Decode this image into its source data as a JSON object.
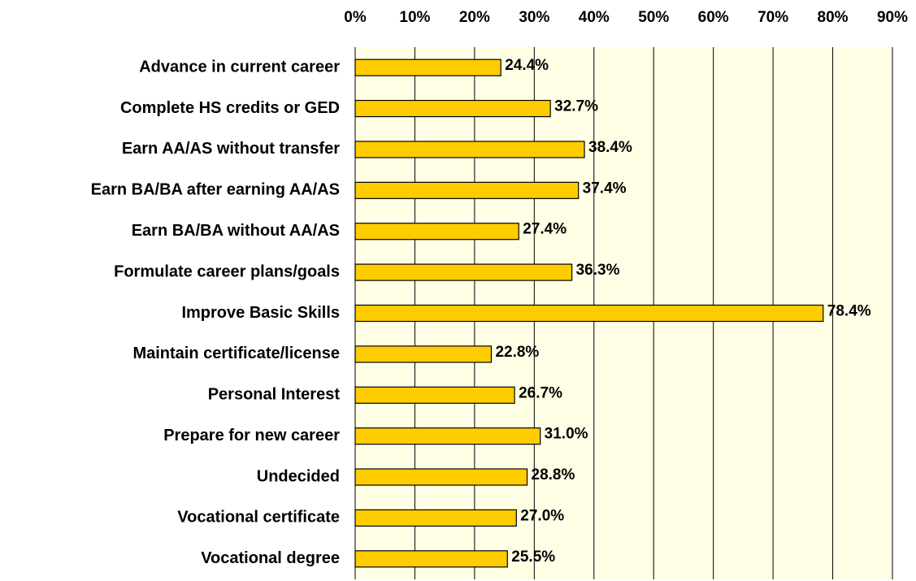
{
  "chart_data": {
    "type": "bar",
    "orientation": "horizontal",
    "categories": [
      "Advance in current career",
      "Complete HS credits or GED",
      "Earn AA/AS without transfer",
      "Earn BA/BA after earning AA/AS",
      "Earn BA/BA without AA/AS",
      "Formulate career plans/goals",
      "Improve Basic Skills",
      "Maintain certificate/license",
      "Personal Interest",
      "Prepare for new career",
      "Undecided",
      "Vocational certificate",
      "Vocational degree"
    ],
    "values": [
      24.4,
      32.7,
      38.4,
      37.4,
      27.4,
      36.3,
      78.4,
      22.8,
      26.7,
      31.0,
      28.8,
      27.0,
      25.5
    ],
    "value_labels": [
      "24.4%",
      "32.7%",
      "38.4%",
      "37.4%",
      "27.4%",
      "36.3%",
      "78.4%",
      "22.8%",
      "26.7%",
      "31.0%",
      "28.8%",
      "27.0%",
      "25.5%"
    ],
    "color": "#ffcc00",
    "xlim": [
      0,
      90
    ],
    "xticks": [
      {
        "value": 0,
        "label": "0%"
      },
      {
        "value": 10,
        "label": "10%"
      },
      {
        "value": 20,
        "label": "20%"
      },
      {
        "value": 30,
        "label": "30%"
      },
      {
        "value": 40,
        "label": "40%"
      },
      {
        "value": 50,
        "label": "50%"
      },
      {
        "value": 60,
        "label": "60%"
      },
      {
        "value": 70,
        "label": "70%"
      },
      {
        "value": 80,
        "label": "80%"
      },
      {
        "value": 90,
        "label": "90%"
      }
    ],
    "grid": true
  }
}
